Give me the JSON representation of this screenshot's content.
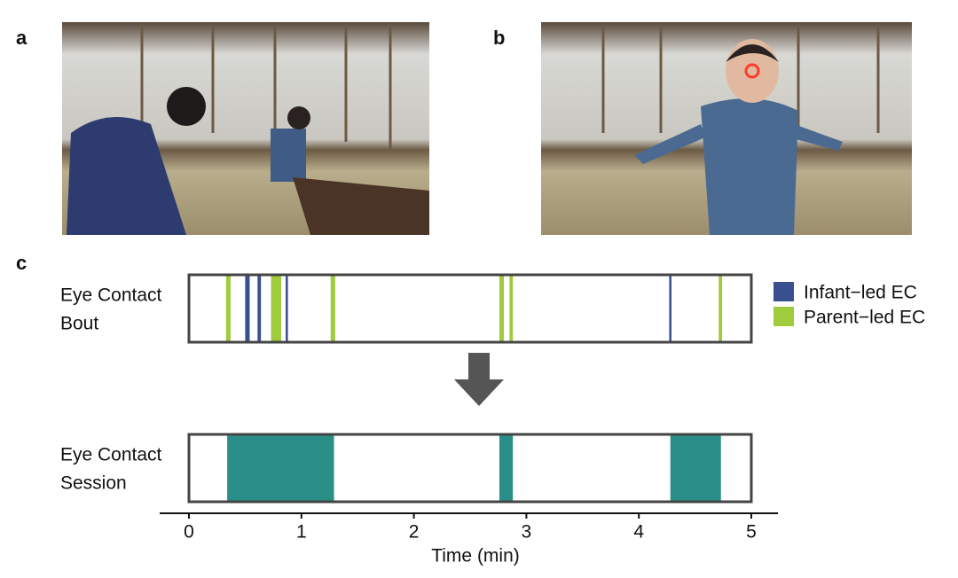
{
  "panel_labels": [
    "a",
    "b",
    "c"
  ],
  "chart_data": {
    "type": "timeline",
    "rows": [
      {
        "label": [
          "Eye Contact",
          "Bout"
        ],
        "series": [
          {
            "name": "Infant−led EC",
            "color": "#3a4f8f",
            "intervals": [
              [
                0.5,
                0.54
              ],
              [
                0.61,
                0.64
              ],
              [
                0.86,
                0.88
              ],
              [
                4.27,
                4.29
              ]
            ]
          },
          {
            "name": "Parent−led EC",
            "color": "#9fcb3c",
            "intervals": [
              [
                0.33,
                0.37
              ],
              [
                0.73,
                0.82
              ],
              [
                1.26,
                1.3
              ],
              [
                2.76,
                2.8
              ],
              [
                2.85,
                2.88
              ],
              [
                4.71,
                4.74
              ]
            ]
          }
        ]
      },
      {
        "label": [
          "Eye Contact",
          "Session"
        ],
        "series": [
          {
            "color": "#2a8f87",
            "intervals": [
              [
                0.34,
                1.29
              ],
              [
                2.76,
                2.88
              ],
              [
                4.28,
                4.73
              ]
            ]
          }
        ]
      }
    ],
    "xlim": [
      0,
      5
    ],
    "xticks": [
      0,
      1,
      2,
      3,
      4,
      5
    ],
    "xlabel": "Time (min)"
  }
}
